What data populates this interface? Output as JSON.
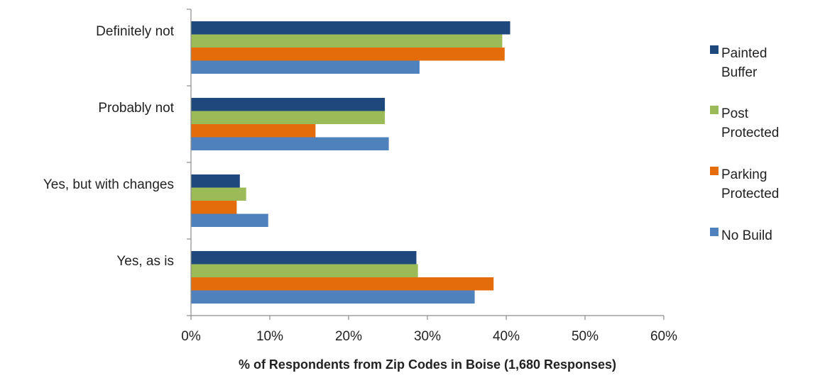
{
  "chart_data": {
    "type": "bar",
    "orientation": "horizontal",
    "title": "",
    "xlabel": "% of Respondents from Zip Codes in Boise (1,680 Responses)",
    "ylabel": "",
    "xlim": [
      0,
      60
    ],
    "xticks": [
      "0%",
      "10%",
      "20%",
      "30%",
      "40%",
      "50%",
      "60%"
    ],
    "grid": false,
    "legend_position": "right",
    "categories": [
      "Definitely not",
      "Probably not",
      "Yes, but with changes",
      "Yes, as is"
    ],
    "series": [
      {
        "name": "Painted Buffer",
        "color": "#1f497d",
        "values": [
          40.5,
          24.6,
          6.2,
          28.6
        ]
      },
      {
        "name": "Post Protected",
        "color": "#9bbb59",
        "values": [
          39.5,
          24.6,
          7.0,
          28.8
        ]
      },
      {
        "name": "Parking Protected",
        "color": "#e46c0a",
        "values": [
          39.8,
          15.8,
          5.8,
          38.4
        ]
      },
      {
        "name": "No Build",
        "color": "#4f81bd",
        "values": [
          29.0,
          25.1,
          9.8,
          36.0
        ]
      }
    ],
    "legend": [
      {
        "lines": [
          "Painted",
          "Buffer"
        ]
      },
      {
        "lines": [
          "Post",
          "Protected"
        ]
      },
      {
        "lines": [
          "Parking",
          "Protected"
        ]
      },
      {
        "lines": [
          "No Build"
        ]
      }
    ]
  }
}
